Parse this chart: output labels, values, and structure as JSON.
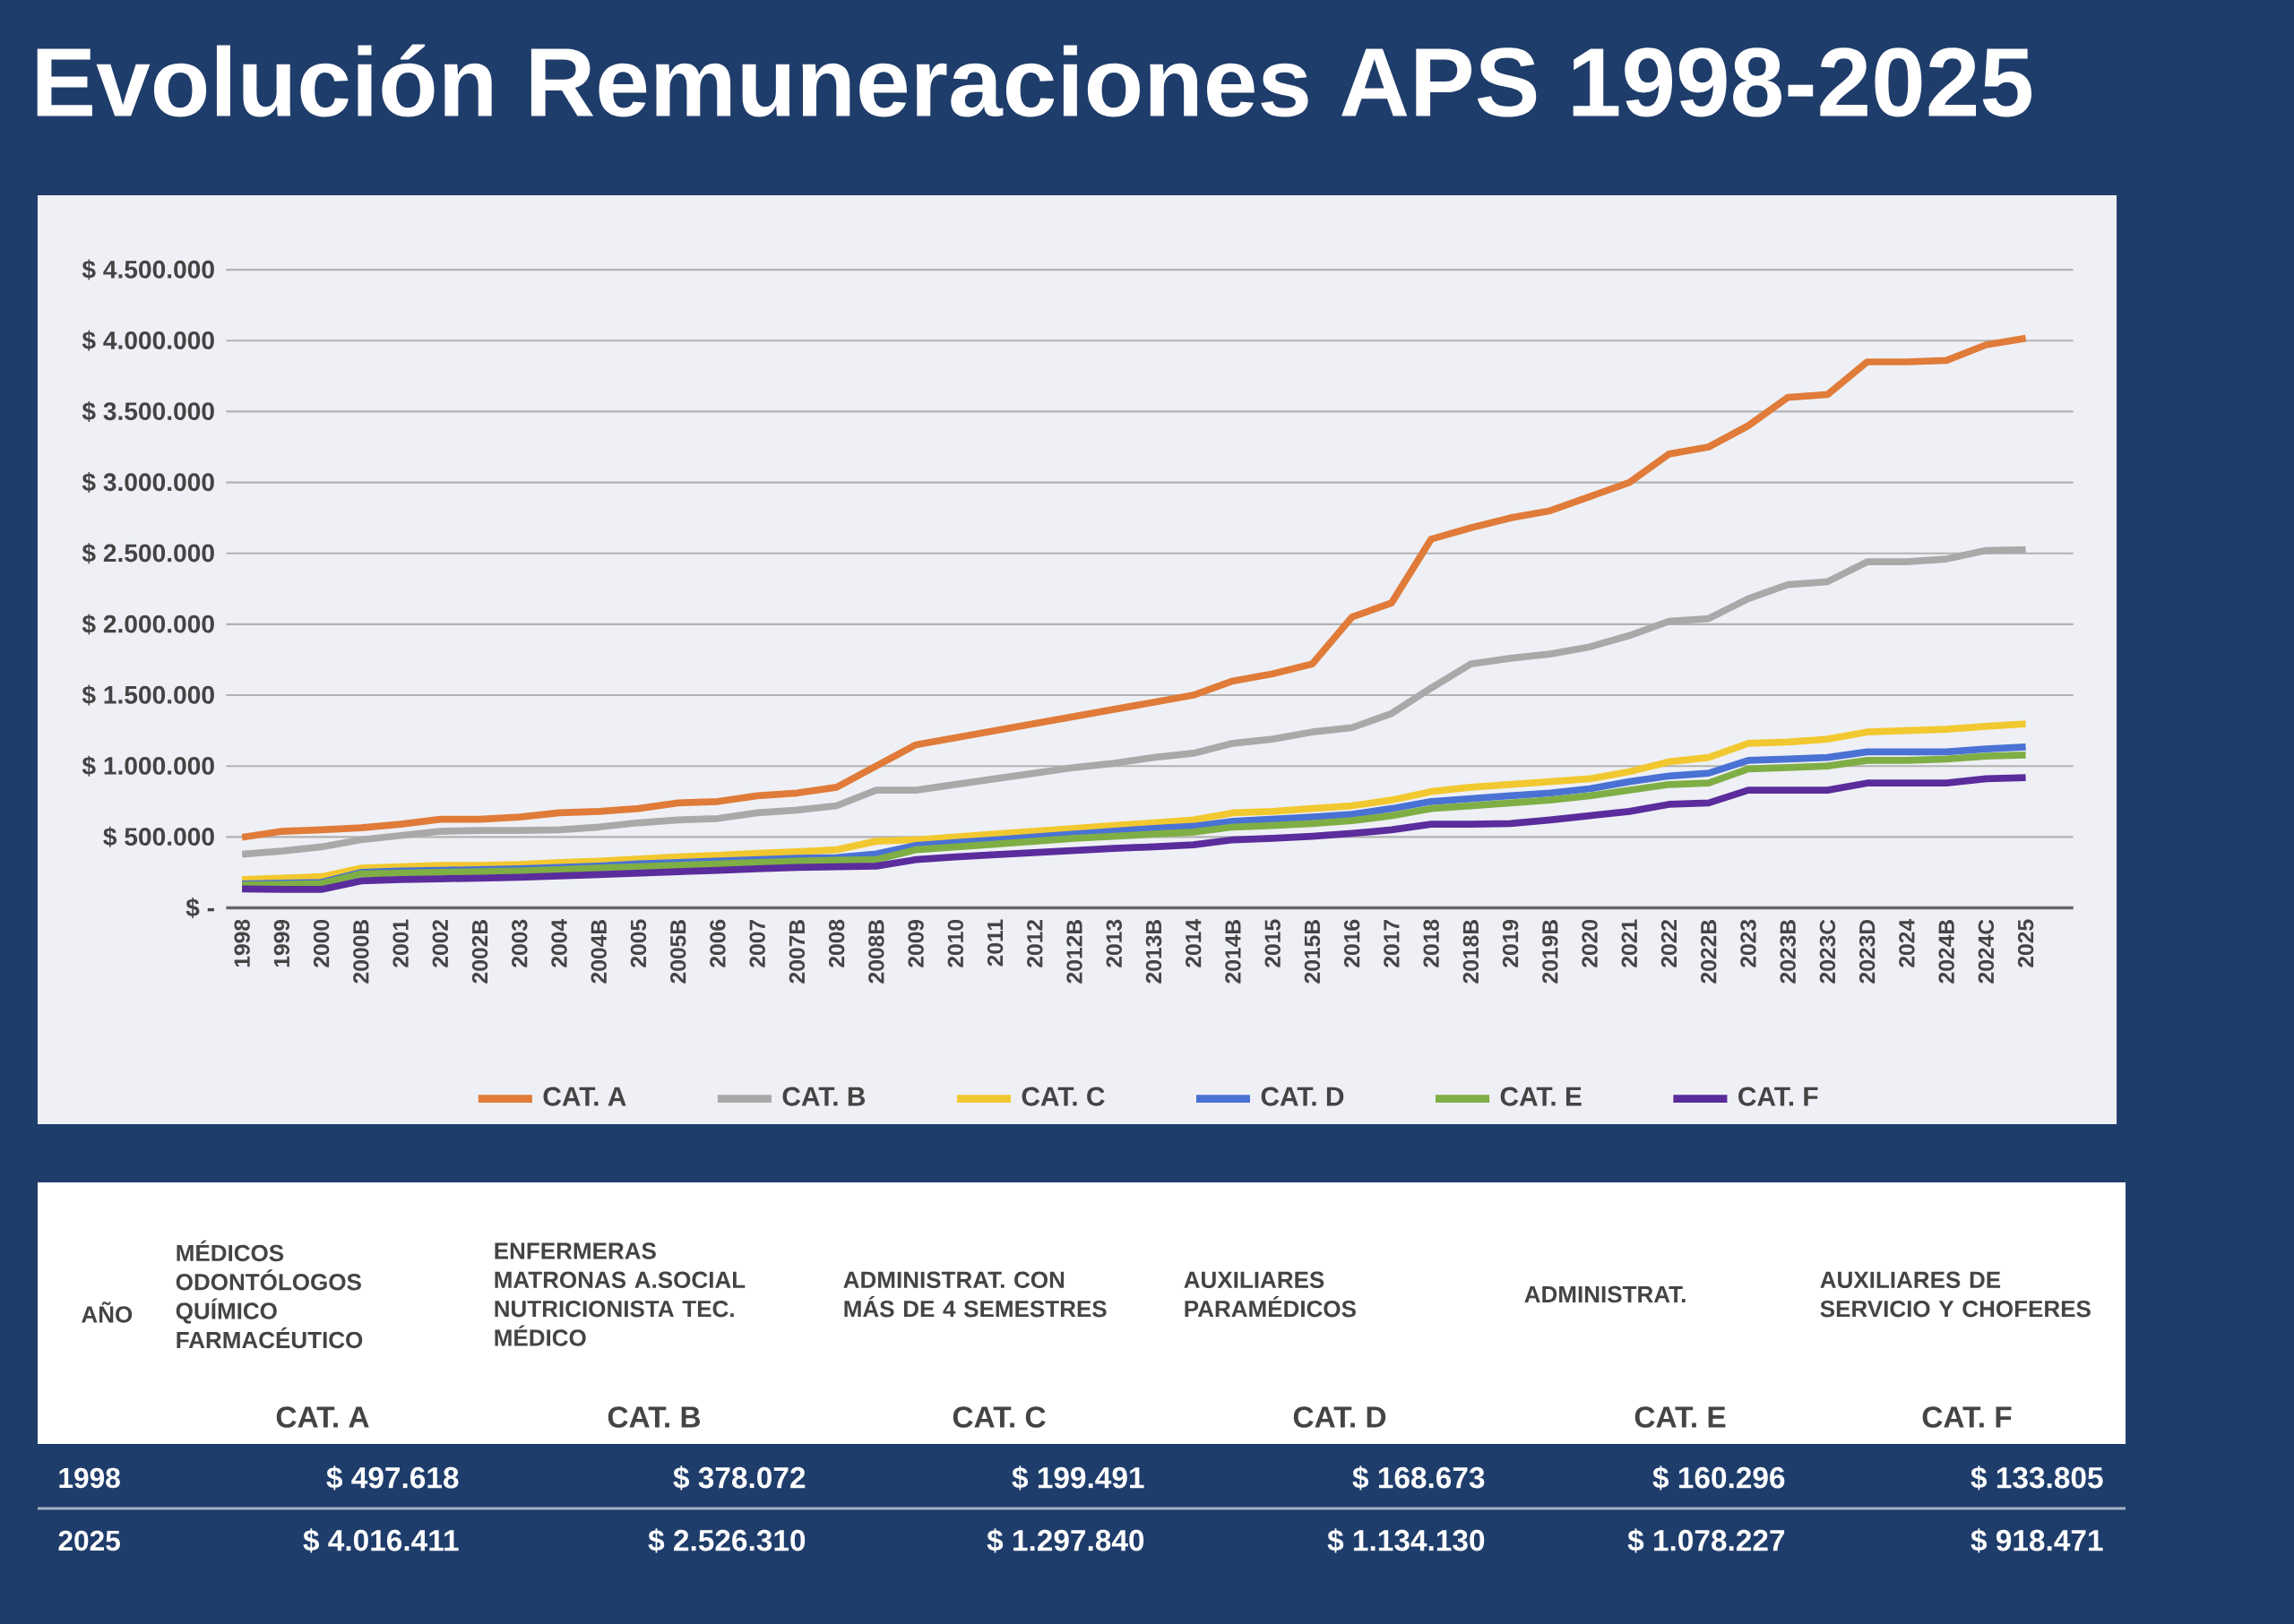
{
  "chart_data": {
    "type": "line",
    "title": "Evolución Remuneraciones APS 1998-2025",
    "categories": [
      "1998",
      "1999",
      "2000",
      "2000B",
      "2001",
      "2002",
      "2002B",
      "2003",
      "2004",
      "2004B",
      "2005",
      "2005B",
      "2006",
      "2007",
      "2007B",
      "2008",
      "2008B",
      "2009",
      "2010",
      "2011",
      "2012",
      "2012B",
      "2013",
      "2013B",
      "2014",
      "2014B",
      "2015",
      "2015B",
      "2016",
      "2017",
      "2018",
      "2018B",
      "2019",
      "2019B",
      "2020",
      "2021",
      "2022",
      "2022B",
      "2023",
      "2023B",
      "2023C",
      "2023D",
      "2024",
      "2024B",
      "2024C",
      "2025"
    ],
    "series": [
      {
        "name": "CAT. A",
        "color": "#e07b39",
        "values": [
          497618,
          540000,
          550000,
          565000,
          590000,
          625000,
          625000,
          640000,
          670000,
          680000,
          700000,
          740000,
          750000,
          790000,
          810000,
          850000,
          1000000,
          1150000,
          1200000,
          1250000,
          1300000,
          1350000,
          1400000,
          1450000,
          1500000,
          1600000,
          1650000,
          1720000,
          2050000,
          2150000,
          2600000,
          2680000,
          2750000,
          2800000,
          2900000,
          3000000,
          3200000,
          3250000,
          3400000,
          3600000,
          3620000,
          3850000,
          3850000,
          3860000,
          3970000,
          4016411
        ]
      },
      {
        "name": "CAT. B",
        "color": "#a9a9a9",
        "values": [
          378072,
          400000,
          430000,
          480000,
          510000,
          540000,
          545000,
          545000,
          550000,
          570000,
          600000,
          620000,
          630000,
          670000,
          690000,
          720000,
          830000,
          830000,
          870000,
          910000,
          950000,
          990000,
          1020000,
          1060000,
          1090000,
          1160000,
          1190000,
          1240000,
          1270000,
          1370000,
          1550000,
          1720000,
          1760000,
          1790000,
          1840000,
          1920000,
          2020000,
          2040000,
          2180000,
          2280000,
          2300000,
          2440000,
          2440000,
          2460000,
          2520000,
          2526310
        ]
      },
      {
        "name": "CAT. C",
        "color": "#f2c830",
        "values": [
          199491,
          210000,
          220000,
          280000,
          290000,
          300000,
          300000,
          305000,
          320000,
          330000,
          345000,
          360000,
          370000,
          385000,
          395000,
          410000,
          470000,
          480000,
          500000,
          520000,
          540000,
          560000,
          580000,
          600000,
          620000,
          670000,
          680000,
          700000,
          720000,
          760000,
          820000,
          850000,
          870000,
          890000,
          910000,
          960000,
          1030000,
          1060000,
          1160000,
          1170000,
          1190000,
          1240000,
          1250000,
          1260000,
          1280000,
          1297840
        ]
      },
      {
        "name": "CAT. D",
        "color": "#4a72d4",
        "values": [
          168673,
          175000,
          180000,
          250000,
          260000,
          265000,
          270000,
          275000,
          285000,
          295000,
          310000,
          320000,
          330000,
          340000,
          350000,
          355000,
          380000,
          440000,
          460000,
          480000,
          500000,
          520000,
          540000,
          560000,
          575000,
          610000,
          625000,
          640000,
          660000,
          700000,
          750000,
          770000,
          790000,
          810000,
          840000,
          890000,
          930000,
          950000,
          1040000,
          1050000,
          1060000,
          1100000,
          1100000,
          1100000,
          1120000,
          1134130
        ]
      },
      {
        "name": "CAT. E",
        "color": "#7fae45",
        "values": [
          160296,
          165000,
          170000,
          240000,
          245000,
          250000,
          255000,
          260000,
          270000,
          280000,
          290000,
          300000,
          310000,
          320000,
          330000,
          335000,
          340000,
          410000,
          430000,
          450000,
          470000,
          490000,
          505000,
          520000,
          535000,
          570000,
          580000,
          595000,
          615000,
          650000,
          700000,
          720000,
          740000,
          760000,
          790000,
          830000,
          870000,
          880000,
          980000,
          990000,
          1000000,
          1040000,
          1040000,
          1050000,
          1070000,
          1078227
        ]
      },
      {
        "name": "CAT. F",
        "color": "#5b2c9c",
        "values": [
          133805,
          130000,
          130000,
          190000,
          200000,
          205000,
          210000,
          215000,
          225000,
          235000,
          245000,
          255000,
          265000,
          275000,
          285000,
          290000,
          295000,
          340000,
          360000,
          375000,
          390000,
          405000,
          420000,
          430000,
          445000,
          480000,
          490000,
          505000,
          525000,
          550000,
          590000,
          590000,
          595000,
          620000,
          650000,
          680000,
          730000,
          740000,
          830000,
          830000,
          830000,
          880000,
          880000,
          880000,
          910000,
          918471
        ]
      }
    ],
    "ylim": [
      0,
      4500000
    ],
    "yticks": [
      {
        "value": 0,
        "label": "$ -"
      },
      {
        "value": 500000,
        "label": "$ 500.000"
      },
      {
        "value": 1000000,
        "label": "$ 1.000.000"
      },
      {
        "value": 1500000,
        "label": "$ 1.500.000"
      },
      {
        "value": 2000000,
        "label": "$ 2.000.000"
      },
      {
        "value": 2500000,
        "label": "$ 2.500.000"
      },
      {
        "value": 3000000,
        "label": "$ 3.000.000"
      },
      {
        "value": 3500000,
        "label": "$ 3.500.000"
      },
      {
        "value": 4000000,
        "label": "$ 4.000.000"
      },
      {
        "value": 4500000,
        "label": "$ 4.500.000"
      }
    ],
    "grid": "y",
    "legend": "bottom",
    "annotations": [
      "AÑO",
      "MÉDICOS ODONTÓLOGOS QUÍMICO FARMACÉUTICO",
      "ENFERMERAS MATRONAS A.SOCIAL NUTRICIONISTA TEC. MÉDICO",
      "ADMINISTRAT. CON MÁS DE 4 SEMESTRES",
      "AUXILIARES PARAMÉDICOS",
      "ADMINISTRAT.",
      "AUXILIARES DE SERVICIO Y CHOFERES",
      "1998",
      "$ 497.618",
      "$ 378.072",
      "$ 199.491",
      "$ 168.673",
      "$ 160.296",
      "$ 133.805",
      "2025",
      "$ 4.016.411",
      "$ 2.526.310",
      "$ 1.297.840",
      "$ 1.134.130",
      "$ 1.078.227",
      "$ 918.471"
    ]
  }
}
